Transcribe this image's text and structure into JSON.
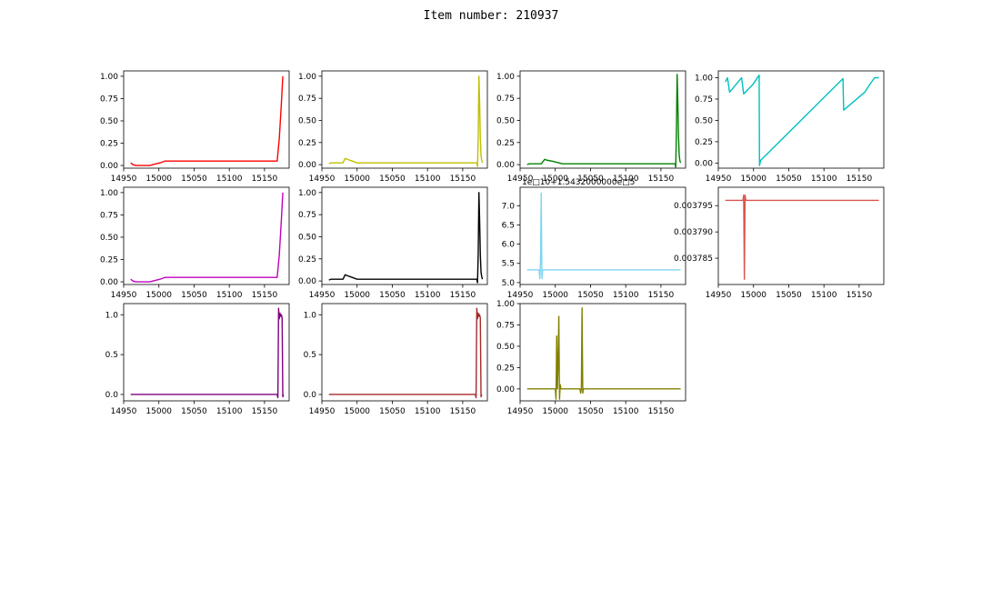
{
  "figure": {
    "title": "Item number: 210937"
  },
  "chart_data": [
    {
      "type": "line",
      "color": "#ff0000",
      "xlim": [
        14950,
        15185
      ],
      "ylim": [
        -0.03,
        1.06
      ],
      "xticks": [
        14950,
        15000,
        15050,
        15100,
        15150
      ],
      "yticks": [
        0.0,
        0.25,
        0.5,
        0.75,
        1.0
      ],
      "xticklabels": [
        "14950",
        "15000",
        "15050",
        "15100",
        "15150"
      ],
      "yticklabels": [
        "0.00",
        "0.25",
        "0.50",
        "0.75",
        "1.00"
      ],
      "x": [
        14960,
        14963,
        14967,
        14972,
        14977,
        14982,
        14987,
        14992,
        14997,
        15002,
        15009,
        15020,
        15060,
        15100,
        15140,
        15168,
        15171,
        15174,
        15176
      ],
      "y": [
        0.03,
        0.01,
        0.0,
        0.0,
        0.0,
        0.0,
        0.0,
        0.01,
        0.02,
        0.03,
        0.05,
        0.05,
        0.05,
        0.05,
        0.05,
        0.05,
        0.3,
        0.7,
        1.0
      ]
    },
    {
      "type": "line",
      "color": "#bfbf00",
      "xlim": [
        14950,
        15185
      ],
      "ylim": [
        -0.04,
        1.06
      ],
      "xticks": [
        14950,
        15000,
        15050,
        15100,
        15150
      ],
      "yticks": [
        0.0,
        0.25,
        0.5,
        0.75,
        1.0
      ],
      "xticklabels": [
        "14950",
        "15000",
        "15050",
        "15100",
        "15150"
      ],
      "yticklabels": [
        "0.00",
        "0.25",
        "0.50",
        "0.75",
        "1.00"
      ],
      "x": [
        14960,
        14963,
        14970,
        14980,
        14983,
        14986,
        14993,
        15000,
        15010,
        15050,
        15100,
        15150,
        15170,
        15171,
        15172,
        15173,
        15174,
        15175,
        15176,
        15177,
        15178
      ],
      "y": [
        0.01,
        0.02,
        0.02,
        0.02,
        0.07,
        0.06,
        0.04,
        0.02,
        0.02,
        0.02,
        0.02,
        0.02,
        0.02,
        -0.02,
        0.3,
        1.0,
        0.7,
        0.3,
        0.1,
        0.05,
        0.02
      ]
    },
    {
      "type": "line",
      "color": "#008000",
      "xlim": [
        14950,
        15185
      ],
      "ylim": [
        -0.04,
        1.06
      ],
      "xticks": [
        14950,
        15000,
        15050,
        15100,
        15150
      ],
      "yticks": [
        0.0,
        0.25,
        0.5,
        0.75,
        1.0
      ],
      "xticklabels": [
        "14950",
        "15000",
        "15050",
        "15100",
        "15150"
      ],
      "yticklabels": [
        "0.00",
        "0.25",
        "0.50",
        "0.75",
        "1.00"
      ],
      "x": [
        14960,
        14963,
        14970,
        14980,
        14985,
        14988,
        14995,
        15005,
        15010,
        15050,
        15100,
        15150,
        15170,
        15171,
        15172,
        15173,
        15174,
        15175,
        15176,
        15177,
        15178
      ],
      "y": [
        0.0,
        0.01,
        0.01,
        0.01,
        0.06,
        0.05,
        0.04,
        0.02,
        0.01,
        0.01,
        0.01,
        0.01,
        0.01,
        -0.03,
        0.4,
        1.02,
        0.7,
        0.3,
        0.1,
        0.04,
        0.02
      ]
    },
    {
      "type": "line",
      "color": "#00bfbf",
      "xlim": [
        14950,
        15185
      ],
      "ylim": [
        -0.06,
        1.08
      ],
      "xticks": [
        14950,
        15000,
        15050,
        15100,
        15150
      ],
      "yticks": [
        0.0,
        0.25,
        0.5,
        0.75,
        1.0
      ],
      "xticklabels": [
        "14950",
        "15000",
        "15050",
        "15100",
        "15150"
      ],
      "yticklabels": [
        "0.00",
        "0.25",
        "0.50",
        "0.75",
        "1.00"
      ],
      "x": [
        14960,
        14963,
        14966,
        14983,
        14986,
        14999,
        15008,
        15008.5,
        15010,
        15127,
        15128,
        15158,
        15165,
        15172,
        15178
      ],
      "y": [
        0.95,
        1.0,
        0.83,
        1.0,
        0.81,
        0.92,
        1.03,
        -0.03,
        0.03,
        0.99,
        0.62,
        0.83,
        0.92,
        1.0,
        1.0
      ]
    },
    {
      "type": "line",
      "color": "#bf00bf",
      "xlim": [
        14950,
        15185
      ],
      "ylim": [
        -0.03,
        1.06
      ],
      "xticks": [
        14950,
        15000,
        15050,
        15100,
        15150
      ],
      "yticks": [
        0.0,
        0.25,
        0.5,
        0.75,
        1.0
      ],
      "xticklabels": [
        "14950",
        "15000",
        "15050",
        "15100",
        "15150"
      ],
      "yticklabels": [
        "0.00",
        "0.25",
        "0.50",
        "0.75",
        "1.00"
      ],
      "x": [
        14960,
        14963,
        14967,
        14972,
        14977,
        14982,
        14987,
        14992,
        14997,
        15002,
        15009,
        15020,
        15060,
        15100,
        15140,
        15168,
        15171,
        15174,
        15176
      ],
      "y": [
        0.03,
        0.01,
        0.0,
        0.0,
        0.0,
        0.0,
        0.0,
        0.01,
        0.02,
        0.03,
        0.05,
        0.05,
        0.05,
        0.05,
        0.05,
        0.05,
        0.3,
        0.7,
        1.0
      ]
    },
    {
      "type": "line",
      "color": "#000000",
      "xlim": [
        14950,
        15185
      ],
      "ylim": [
        -0.04,
        1.06
      ],
      "xticks": [
        14950,
        15000,
        15050,
        15100,
        15150
      ],
      "yticks": [
        0.0,
        0.25,
        0.5,
        0.75,
        1.0
      ],
      "xticklabels": [
        "14950",
        "15000",
        "15050",
        "15100",
        "15150"
      ],
      "yticklabels": [
        "0.00",
        "0.25",
        "0.50",
        "0.75",
        "1.00"
      ],
      "x": [
        14960,
        14963,
        14970,
        14980,
        14983,
        14986,
        14993,
        15000,
        15010,
        15050,
        15100,
        15150,
        15170,
        15171,
        15172,
        15173,
        15174,
        15175,
        15176,
        15177,
        15178
      ],
      "y": [
        0.01,
        0.02,
        0.02,
        0.02,
        0.07,
        0.06,
        0.04,
        0.02,
        0.02,
        0.02,
        0.02,
        0.02,
        0.02,
        -0.02,
        0.3,
        1.0,
        0.7,
        0.3,
        0.1,
        0.05,
        0.02
      ]
    },
    {
      "type": "line",
      "color": "#80d4f0",
      "xlim": [
        14950,
        15185
      ],
      "ylim": [
        4.95,
        7.48
      ],
      "xticks": [
        14950,
        15000,
        15050,
        15100,
        15150
      ],
      "yticks": [
        5.0,
        5.5,
        6.0,
        6.5,
        7.0
      ],
      "xticklabels": [
        "14950",
        "15000",
        "15050",
        "15100",
        "15150"
      ],
      "yticklabels": [
        "5.0",
        "5.5",
        "6.0",
        "6.5",
        "7.0"
      ],
      "offset_label": "1e□10+1.5432000000e□5",
      "x": [
        14960,
        14975,
        14977,
        14978,
        14979,
        14980,
        14981,
        14982,
        14983,
        15000,
        15050,
        15100,
        15150,
        15178
      ],
      "y": [
        5.33,
        5.33,
        5.33,
        5.1,
        5.5,
        7.33,
        5.1,
        5.33,
        5.33,
        5.33,
        5.33,
        5.33,
        5.33,
        5.33
      ]
    },
    {
      "type": "line",
      "color": "#d9534f",
      "xlim": [
        14950,
        15185
      ],
      "ylim": [
        0.00378,
        0.0037985
      ],
      "xticks": [
        14950,
        15000,
        15050,
        15100,
        15150
      ],
      "yticks": [
        0.003785,
        0.00379,
        0.003795
      ],
      "xticklabels": [
        "14950",
        "15000",
        "15050",
        "15100",
        "15150"
      ],
      "yticklabels": [
        "0.003785",
        "0.003790",
        "0.003795"
      ],
      "x": [
        14960,
        14985,
        14986,
        14987,
        14988,
        14989,
        14990,
        15000,
        15050,
        15100,
        15150,
        15178
      ],
      "y": [
        0.003796,
        0.003796,
        0.003797,
        0.003781,
        0.003797,
        0.003796,
        0.003796,
        0.003796,
        0.003796,
        0.003796,
        0.003796,
        0.003796
      ]
    },
    {
      "type": "line",
      "color": "#7f007f",
      "xlim": [
        14950,
        15185
      ],
      "ylim": [
        -0.08,
        1.14
      ],
      "xticks": [
        14950,
        15000,
        15050,
        15100,
        15150
      ],
      "yticks": [
        0.0,
        0.5,
        1.0
      ],
      "xticklabels": [
        "14950",
        "15000",
        "15050",
        "15100",
        "15150"
      ],
      "yticklabels": [
        "0.0",
        "0.5",
        "1.0"
      ],
      "x": [
        14960,
        15000,
        15100,
        15168,
        15169,
        15170,
        15171,
        15172,
        15173,
        15174,
        15175,
        15176,
        15177
      ],
      "y": [
        0.0,
        0.0,
        0.0,
        0.0,
        -0.04,
        1.08,
        0.95,
        1.02,
        0.98,
        1.0,
        0.96,
        -0.03,
        0.0
      ]
    },
    {
      "type": "line",
      "color": "#a52a2a",
      "xlim": [
        14950,
        15185
      ],
      "ylim": [
        -0.08,
        1.14
      ],
      "xticks": [
        14950,
        15000,
        15050,
        15100,
        15150
      ],
      "yticks": [
        0.0,
        0.5,
        1.0
      ],
      "xticklabels": [
        "14950",
        "15000",
        "15050",
        "15100",
        "15150"
      ],
      "yticklabels": [
        "0.0",
        "0.5",
        "1.0"
      ],
      "x": [
        14960,
        15000,
        15100,
        15168,
        15169,
        15170,
        15171,
        15172,
        15173,
        15174,
        15175,
        15176,
        15177
      ],
      "y": [
        0.0,
        0.0,
        0.0,
        0.0,
        -0.04,
        1.08,
        0.95,
        1.02,
        0.98,
        1.0,
        0.96,
        -0.03,
        0.0
      ]
    },
    {
      "type": "line",
      "color": "#808000",
      "xlim": [
        14950,
        15185
      ],
      "ylim": [
        -0.14,
        1.0
      ],
      "xticks": [
        14950,
        15000,
        15050,
        15100,
        15150
      ],
      "yticks": [
        0.0,
        0.25,
        0.5,
        0.75,
        1.0
      ],
      "xticklabels": [
        "14950",
        "15000",
        "15050",
        "15100",
        "15150"
      ],
      "yticklabels": [
        "0.00",
        "0.25",
        "0.50",
        "0.75",
        "1.00"
      ],
      "x": [
        14960,
        14995,
        15000,
        15001,
        15002,
        15003,
        15004,
        15005,
        15006,
        15007,
        15008,
        15009,
        15010,
        15035,
        15036,
        15037,
        15038,
        15039,
        15040,
        15041,
        15045,
        15100,
        15150,
        15178
      ],
      "y": [
        0.0,
        0.0,
        0.0,
        -0.12,
        0.62,
        0.0,
        0.3,
        0.85,
        -0.12,
        0.05,
        0.0,
        0.0,
        0.0,
        0.0,
        -0.05,
        0.0,
        0.95,
        -0.05,
        0.0,
        0.0,
        0.0,
        0.0,
        0.0,
        0.0
      ]
    }
  ]
}
